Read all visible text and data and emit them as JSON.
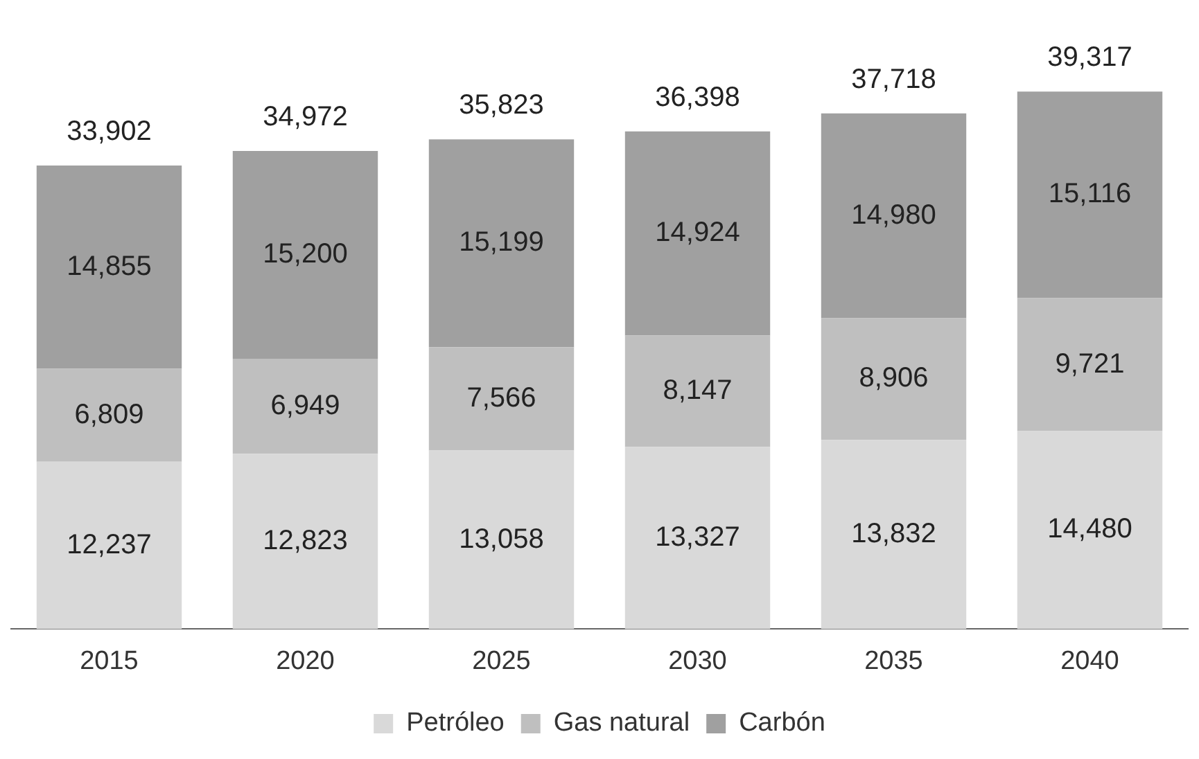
{
  "chart_data": {
    "type": "bar",
    "stacked": true,
    "legend": "bottom",
    "grid": false,
    "categories": [
      "2015",
      "2020",
      "2025",
      "2030",
      "2035",
      "2040"
    ],
    "series": [
      {
        "name": "Petróleo",
        "color": "#d9d9d9",
        "values": [
          12237,
          12823,
          13058,
          13327,
          13832,
          14480
        ],
        "value_labels": [
          "12,237",
          "12,823",
          "13,058",
          "13,327",
          "13,832",
          "14,480"
        ]
      },
      {
        "name": "Gas natural",
        "color": "#bfbfbf",
        "values": [
          6809,
          6949,
          7566,
          8147,
          8906,
          9721
        ],
        "value_labels": [
          "6,809",
          "6,949",
          "7,566",
          "8,147",
          "8,906",
          "9,721"
        ]
      },
      {
        "name": "Carbón",
        "color": "#a0a0a0",
        "values": [
          14855,
          15200,
          15199,
          14924,
          14980,
          15116
        ],
        "value_labels": [
          "14,855",
          "15,200",
          "15,199",
          "14,924",
          "14,980",
          "15,116"
        ]
      }
    ],
    "totals": [
      "33,902",
      "34,972",
      "35,823",
      "36,398",
      "37,718",
      "39,317"
    ]
  }
}
